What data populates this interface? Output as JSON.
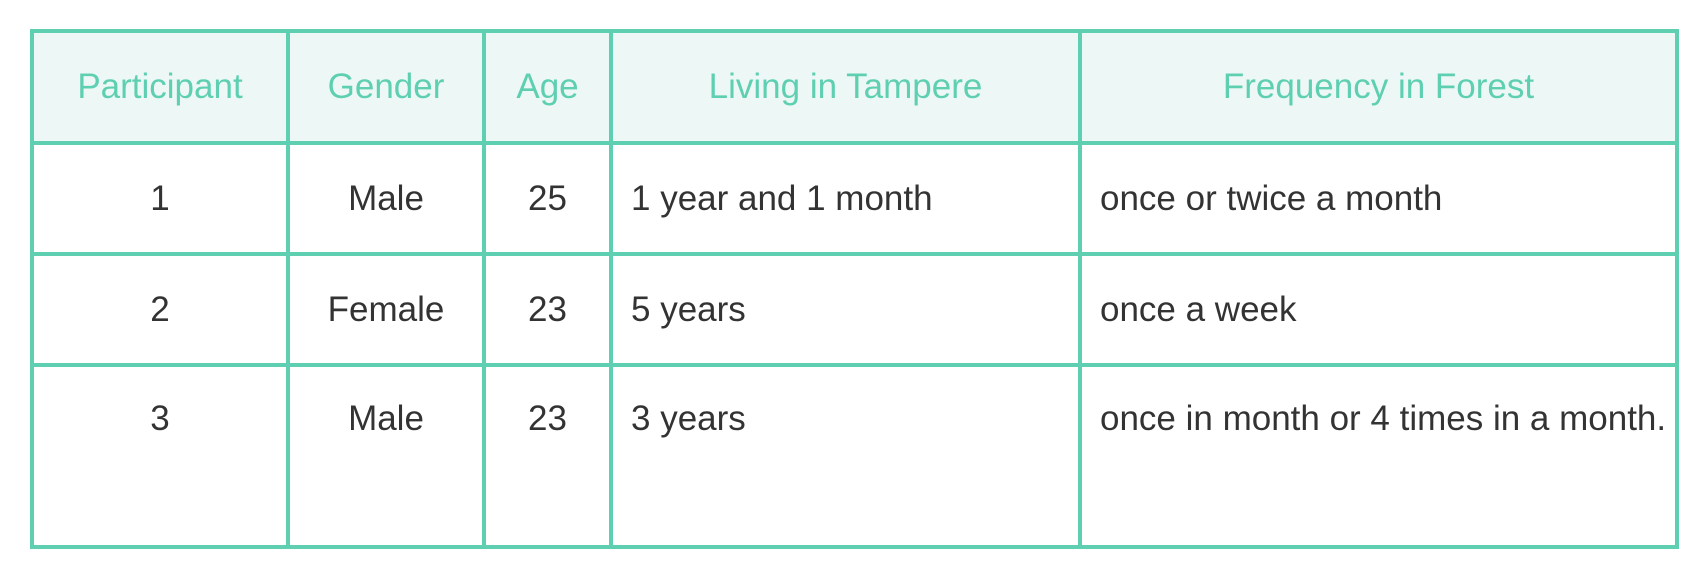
{
  "table": {
    "headers": [
      "Participant",
      "Gender",
      "Age",
      "Living in Tampere",
      "Frequency in Forest"
    ],
    "rows": [
      {
        "participant": "1",
        "gender": "Male",
        "age": "25",
        "living": "1 year and 1 month",
        "frequency": "once or twice a month"
      },
      {
        "participant": "2",
        "gender": "Female",
        "age": "23",
        "living": "5 years",
        "frequency": "once a week"
      },
      {
        "participant": "3",
        "gender": "Male",
        "age": "23",
        "living": "3 years",
        "frequency": "once in month or 4 times in a month."
      }
    ]
  },
  "colors": {
    "border": "#5ecfb0",
    "header_background": "#edf8f6",
    "header_text": "#5ecfb0",
    "body_text": "#333333"
  }
}
